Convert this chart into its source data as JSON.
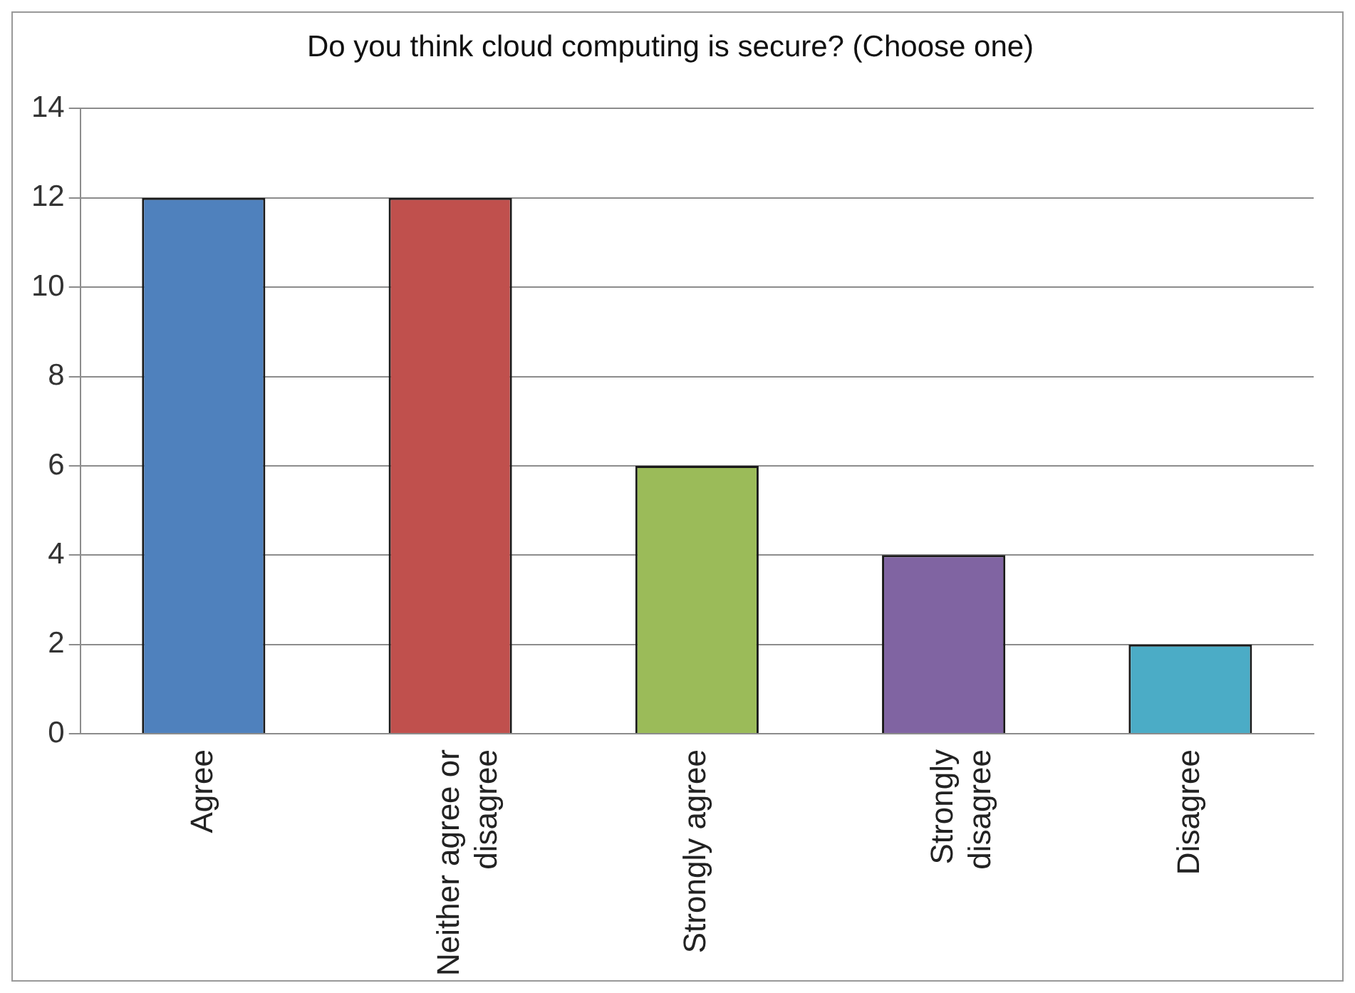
{
  "chart_data": {
    "type": "bar",
    "title": "Do you think cloud computing is secure? (Choose one)",
    "categories": [
      "Agree",
      "Neither agree or disagree",
      "Strongly agree",
      "Strongly disagree",
      "Disagree"
    ],
    "values": [
      12,
      12,
      6,
      4,
      2
    ],
    "colors": [
      "#4f81bd",
      "#c0504d",
      "#9bbb59",
      "#8064a2",
      "#4bacc6"
    ],
    "ylim": [
      0,
      14
    ],
    "yticks": [
      0,
      2,
      4,
      6,
      8,
      10,
      12,
      14
    ],
    "grid": "y",
    "legend": false
  }
}
